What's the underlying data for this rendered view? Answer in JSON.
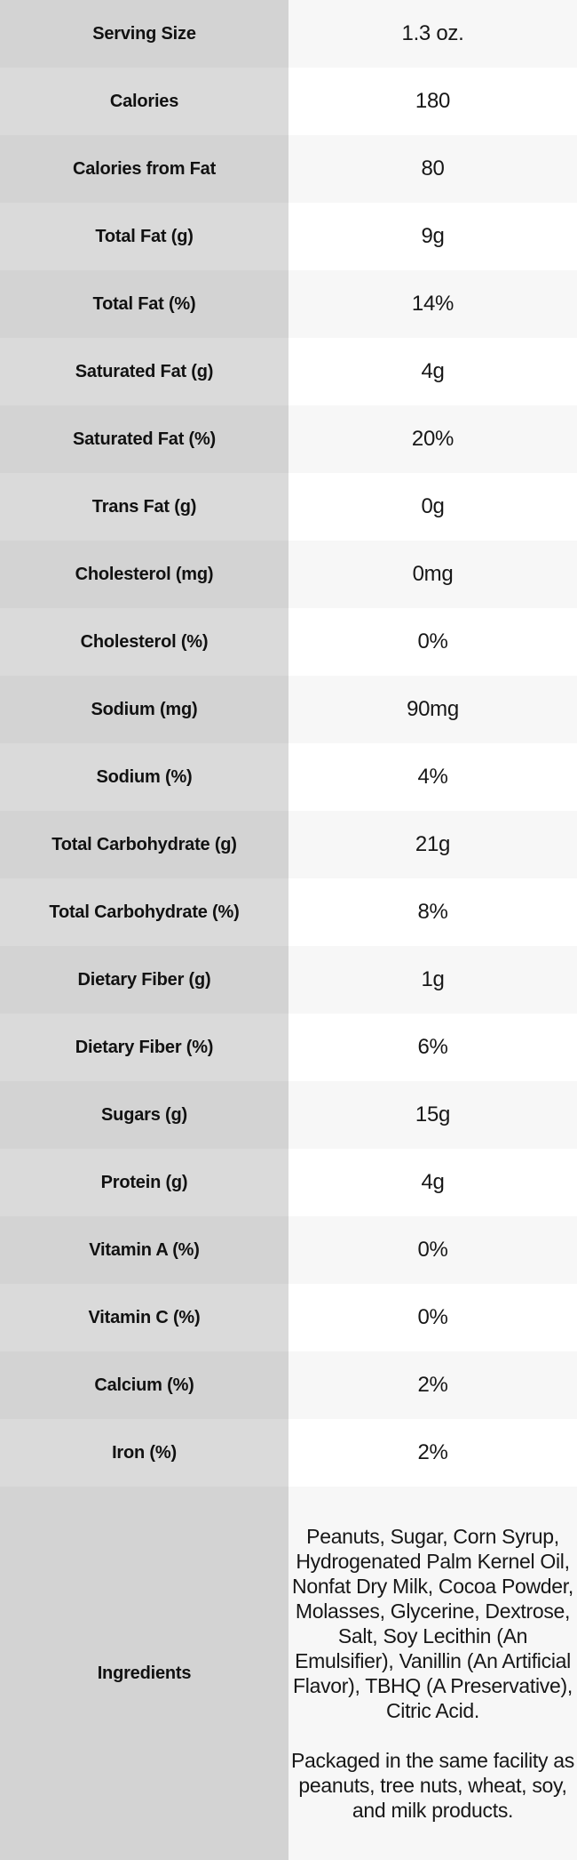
{
  "theme": {
    "label_bg_odd": "#d3d3d3",
    "label_bg_even": "#dadada",
    "value_bg_odd": "#f7f7f7",
    "value_bg_even": "#ffffff",
    "text_color": "#171717"
  },
  "table": {
    "rows": [
      {
        "label": "Serving Size",
        "value": "1.3 oz."
      },
      {
        "label": "Calories",
        "value": "180"
      },
      {
        "label": "Calories from Fat",
        "value": "80"
      },
      {
        "label": "Total Fat (g)",
        "value": "9g"
      },
      {
        "label": "Total Fat (%)",
        "value": "14%"
      },
      {
        "label": "Saturated Fat (g)",
        "value": "4g"
      },
      {
        "label": "Saturated Fat (%)",
        "value": "20%"
      },
      {
        "label": "Trans Fat (g)",
        "value": "0g"
      },
      {
        "label": "Cholesterol (mg)",
        "value": "0mg"
      },
      {
        "label": "Cholesterol (%)",
        "value": "0%"
      },
      {
        "label": "Sodium (mg)",
        "value": "90mg"
      },
      {
        "label": "Sodium (%)",
        "value": "4%"
      },
      {
        "label": "Total Carbohydrate (g)",
        "value": "21g"
      },
      {
        "label": "Total Carbohydrate (%)",
        "value": "8%"
      },
      {
        "label": "Dietary Fiber (g)",
        "value": "1g"
      },
      {
        "label": "Dietary Fiber (%)",
        "value": "6%"
      },
      {
        "label": "Sugars (g)",
        "value": "15g"
      },
      {
        "label": "Protein (g)",
        "value": "4g"
      },
      {
        "label": "Vitamin A (%)",
        "value": "0%"
      },
      {
        "label": "Vitamin C (%)",
        "value": "0%"
      },
      {
        "label": "Calcium (%)",
        "value": "2%"
      },
      {
        "label": "Iron (%)",
        "value": "2%"
      }
    ],
    "ingredients": {
      "label": "Ingredients",
      "text": "Peanuts, Sugar, Corn Syrup, Hydrogenated Palm Kernel Oil, Nonfat Dry Milk, Cocoa Powder, Molasses, Glycerine, Dextrose, Salt, Soy Lecithin (An Emulsifier), Vanillin (An Artificial Flavor), TBHQ (A Preservative), Citric Acid.\n\nPackaged in the same facility as peanuts, tree nuts, wheat, soy, and milk products."
    }
  }
}
